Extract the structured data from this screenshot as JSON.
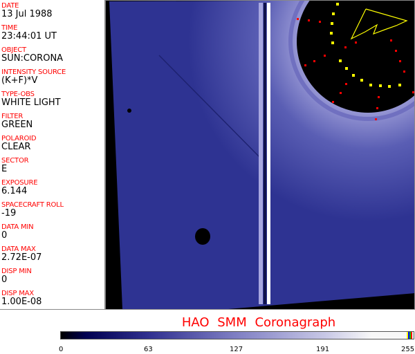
{
  "fields": [
    {
      "label": "DATE",
      "value": "13 Jul 1988"
    },
    {
      "label": "TIME",
      "value": "23:44:01 UT"
    },
    {
      "label": "OBJECT",
      "value": "SUN:CORONA"
    },
    {
      "label": "INTENSITY SOURCE",
      "value": "(K+F)*V"
    },
    {
      "label": "TYPE-OBS",
      "value": "WHITE LIGHT"
    },
    {
      "label": "FILTER",
      "value": "GREEN"
    },
    {
      "label": "POLAROID",
      "value": "CLEAR"
    },
    {
      "label": "SECTOR",
      "value": "E"
    },
    {
      "label": "EXPOSURE",
      "value": "6.144"
    },
    {
      "label": "SPACECRAFT ROLL",
      "value": "-19"
    },
    {
      "label": "DATA MIN",
      "value": "0"
    },
    {
      "label": "DATA MAX",
      "value": "2.72E-07"
    },
    {
      "label": "DISP MIN",
      "value": "0"
    },
    {
      "label": "DISP MAX",
      "value": "1.00E-08"
    }
  ],
  "title": "HAO  SMM Coronagraph",
  "colorbar": {
    "ticks": [
      "0",
      "63",
      "127",
      "191",
      "255"
    ],
    "colors": {
      "low": "#000000",
      "mid": "#8080c4",
      "high": "#f8f8f8",
      "end_marks": [
        "#ffff00",
        "#0000ff",
        "#00c000",
        "#ff0000"
      ]
    }
  },
  "colors": {
    "label": "#ff0000",
    "image_blue": "#2e3392",
    "occulter": "#000000",
    "markers_red": "#ff0000",
    "markers_yellow": "#ffff00"
  }
}
